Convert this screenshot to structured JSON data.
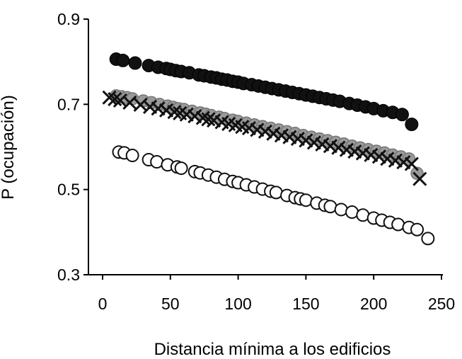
{
  "chart_data": {
    "type": "scatter",
    "title": "",
    "xlabel": "Distancia mínima a los edificios",
    "ylabel": "P (ocupación)",
    "xlim": [
      -10,
      250
    ],
    "ylim": [
      0.3,
      0.9
    ],
    "xticks": [
      0,
      50,
      100,
      150,
      200,
      250
    ],
    "xtick_labels": [
      "0",
      "50",
      "100",
      "150",
      "200",
      "250"
    ],
    "yticks": [
      0.3,
      0.5,
      0.7,
      0.9
    ],
    "ytick_labels": [
      "0.3",
      "0.5",
      "0.7",
      "0.9"
    ],
    "grid": false,
    "legend": "none",
    "series": [
      {
        "marker": "filled-circle",
        "color": "#111111",
        "x": [
          10,
          15,
          24,
          34,
          41,
          47,
          50,
          54,
          58,
          64,
          71,
          75,
          80,
          84,
          88,
          92,
          96,
          100,
          104,
          110,
          115,
          120,
          125,
          130,
          135,
          140,
          145,
          150,
          155,
          160,
          165,
          170,
          175,
          182,
          188,
          194,
          200,
          207,
          214,
          221,
          228
        ],
        "y": [
          0.806,
          0.803,
          0.797,
          0.791,
          0.787,
          0.784,
          0.782,
          0.779,
          0.777,
          0.774,
          0.769,
          0.767,
          0.764,
          0.762,
          0.759,
          0.757,
          0.754,
          0.752,
          0.749,
          0.746,
          0.743,
          0.74,
          0.737,
          0.734,
          0.731,
          0.728,
          0.725,
          0.722,
          0.719,
          0.716,
          0.713,
          0.71,
          0.707,
          0.702,
          0.698,
          0.694,
          0.69,
          0.685,
          0.681,
          0.676,
          0.653
        ]
      },
      {
        "marker": "gray-circle",
        "color": "#9a9a9a",
        "x": [
          10,
          14,
          18,
          22,
          30,
          36,
          42,
          48,
          52,
          56,
          60,
          66,
          72,
          76,
          80,
          86,
          90,
          96,
          100,
          106,
          112,
          118,
          124,
          130,
          136,
          142,
          148,
          154,
          160,
          166,
          172,
          178,
          184,
          190,
          196,
          202,
          208,
          214,
          220,
          226,
          232
        ],
        "y": [
          0.72,
          0.718,
          0.716,
          0.713,
          0.708,
          0.704,
          0.7,
          0.696,
          0.693,
          0.69,
          0.688,
          0.684,
          0.68,
          0.677,
          0.674,
          0.67,
          0.667,
          0.663,
          0.66,
          0.656,
          0.652,
          0.648,
          0.644,
          0.64,
          0.636,
          0.632,
          0.627,
          0.623,
          0.619,
          0.615,
          0.611,
          0.607,
          0.602,
          0.598,
          0.594,
          0.59,
          0.586,
          0.581,
          0.577,
          0.572,
          0.538
        ]
      },
      {
        "marker": "x",
        "color": "#111111",
        "x": [
          5,
          9,
          13,
          20,
          28,
          35,
          41,
          47,
          53,
          57,
          62,
          68,
          74,
          78,
          82,
          88,
          93,
          98,
          103,
          108,
          114,
          120,
          126,
          132,
          138,
          144,
          150,
          156,
          162,
          168,
          174,
          180,
          186,
          192,
          198,
          204,
          210,
          216,
          222,
          228,
          234
        ],
        "y": [
          0.716,
          0.712,
          0.709,
          0.704,
          0.699,
          0.694,
          0.69,
          0.686,
          0.682,
          0.679,
          0.676,
          0.672,
          0.668,
          0.665,
          0.662,
          0.658,
          0.654,
          0.651,
          0.647,
          0.644,
          0.64,
          0.636,
          0.631,
          0.627,
          0.623,
          0.619,
          0.615,
          0.61,
          0.606,
          0.602,
          0.598,
          0.593,
          0.589,
          0.585,
          0.581,
          0.577,
          0.572,
          0.568,
          0.564,
          0.56,
          0.525
        ]
      },
      {
        "marker": "open-circle",
        "color": "#111111",
        "x": [
          12,
          16,
          22,
          34,
          40,
          48,
          55,
          58,
          68,
          72,
          78,
          84,
          90,
          96,
          100,
          106,
          112,
          118,
          124,
          128,
          136,
          142,
          146,
          150,
          158,
          164,
          168,
          176,
          184,
          192,
          200,
          206,
          212,
          218,
          226,
          232,
          240
        ],
        "y": [
          0.588,
          0.586,
          0.58,
          0.57,
          0.565,
          0.558,
          0.553,
          0.55,
          0.542,
          0.539,
          0.534,
          0.529,
          0.524,
          0.519,
          0.516,
          0.511,
          0.506,
          0.501,
          0.496,
          0.493,
          0.486,
          0.481,
          0.478,
          0.475,
          0.468,
          0.463,
          0.46,
          0.453,
          0.447,
          0.44,
          0.433,
          0.428,
          0.423,
          0.418,
          0.411,
          0.406,
          0.385
        ]
      }
    ]
  }
}
